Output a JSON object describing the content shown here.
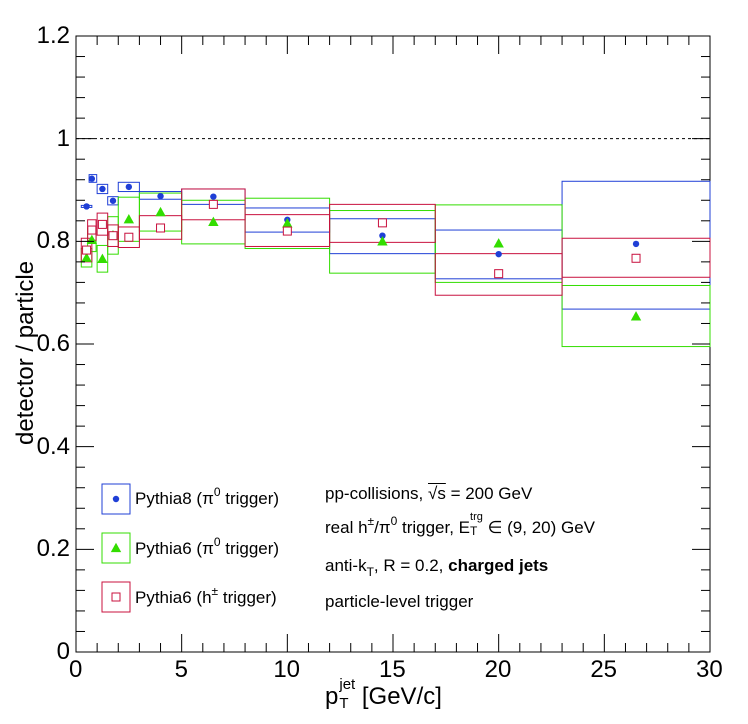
{
  "chart_data": {
    "type": "scatter",
    "xlabel": "p_T^jet [GeV/c]",
    "ylabel": "detector / particle",
    "xlim": [
      0,
      30
    ],
    "ylim": [
      0,
      1.2
    ],
    "x_ticks": [
      "0",
      "5",
      "10",
      "15",
      "20",
      "25",
      "30"
    ],
    "y_ticks": [
      "0",
      "0.2",
      "0.4",
      "0.6",
      "0.8",
      "1",
      "1.2"
    ],
    "reference_line": {
      "y": 1.0,
      "style": "dotted"
    },
    "grid": false,
    "legend_position": "bottom-left",
    "series": [
      {
        "name": "Pythia8 (π0 trigger)",
        "color": "#1f3fd6",
        "marker": "filled-circle",
        "points": [
          {
            "x": 0.5,
            "y": 0.868,
            "xlo": 0.25,
            "xhi": 0.75,
            "ylo": 0.866,
            "yhi": 0.87
          },
          {
            "x": 0.75,
            "y": 0.922,
            "xlo": 0.62,
            "xhi": 0.98,
            "ylo": 0.915,
            "yhi": 0.93
          },
          {
            "x": 1.25,
            "y": 0.902,
            "xlo": 1.0,
            "xhi": 1.5,
            "ylo": 0.893,
            "yhi": 0.911
          },
          {
            "x": 1.75,
            "y": 0.879,
            "xlo": 1.5,
            "xhi": 2.0,
            "ylo": 0.871,
            "yhi": 0.887
          },
          {
            "x": 2.5,
            "y": 0.906,
            "xlo": 2.0,
            "xhi": 3.0,
            "ylo": 0.897,
            "yhi": 0.915
          },
          {
            "x": 4.0,
            "y": 0.888,
            "xlo": 3.0,
            "xhi": 5.0,
            "ylo": 0.882,
            "yhi": 0.897
          },
          {
            "x": 6.5,
            "y": 0.887,
            "xlo": 5.0,
            "xhi": 8.0,
            "ylo": 0.872,
            "yhi": 0.902
          },
          {
            "x": 10.0,
            "y": 0.842,
            "xlo": 8.0,
            "xhi": 12.0,
            "ylo": 0.818,
            "yhi": 0.865
          },
          {
            "x": 14.5,
            "y": 0.811,
            "xlo": 12.0,
            "xhi": 17.0,
            "ylo": 0.776,
            "yhi": 0.844
          },
          {
            "x": 20.0,
            "y": 0.775,
            "xlo": 17.0,
            "xhi": 23.0,
            "ylo": 0.727,
            "yhi": 0.822
          },
          {
            "x": 26.5,
            "y": 0.795,
            "xlo": 23.0,
            "xhi": 30.0,
            "ylo": 0.668,
            "yhi": 0.917
          }
        ]
      },
      {
        "name": "Pythia6 (π0 trigger)",
        "color": "#33dd00",
        "marker": "filled-triangle",
        "points": [
          {
            "x": 0.5,
            "y": 0.768,
            "xlo": 0.25,
            "xhi": 0.75,
            "ylo": 0.75,
            "yhi": 0.786
          },
          {
            "x": 0.75,
            "y": 0.803,
            "xlo": 0.55,
            "xhi": 0.95,
            "ylo": 0.78,
            "yhi": 0.826
          },
          {
            "x": 1.25,
            "y": 0.766,
            "xlo": 1.0,
            "xhi": 1.5,
            "ylo": 0.74,
            "yhi": 0.792
          },
          {
            "x": 1.75,
            "y": 0.812,
            "xlo": 1.5,
            "xhi": 2.0,
            "ylo": 0.775,
            "yhi": 0.848
          },
          {
            "x": 2.5,
            "y": 0.843,
            "xlo": 2.0,
            "xhi": 3.0,
            "ylo": 0.8,
            "yhi": 0.886
          },
          {
            "x": 4.0,
            "y": 0.857,
            "xlo": 3.0,
            "xhi": 5.0,
            "ylo": 0.82,
            "yhi": 0.894
          },
          {
            "x": 6.5,
            "y": 0.838,
            "xlo": 5.0,
            "xhi": 8.0,
            "ylo": 0.795,
            "yhi": 0.88
          },
          {
            "x": 10.0,
            "y": 0.835,
            "xlo": 8.0,
            "xhi": 12.0,
            "ylo": 0.786,
            "yhi": 0.884
          },
          {
            "x": 14.5,
            "y": 0.8,
            "xlo": 12.0,
            "xhi": 17.0,
            "ylo": 0.738,
            "yhi": 0.86
          },
          {
            "x": 20.0,
            "y": 0.796,
            "xlo": 17.0,
            "xhi": 23.0,
            "ylo": 0.72,
            "yhi": 0.871
          },
          {
            "x": 26.5,
            "y": 0.654,
            "xlo": 23.0,
            "xhi": 30.0,
            "ylo": 0.595,
            "yhi": 0.714
          }
        ]
      },
      {
        "name": "Pythia6 (h± trigger)",
        "color": "#c8103e",
        "marker": "open-square",
        "points": [
          {
            "x": 0.5,
            "y": 0.783,
            "xlo": 0.25,
            "xhi": 0.75,
            "ylo": 0.76,
            "yhi": 0.806
          },
          {
            "x": 0.75,
            "y": 0.822,
            "xlo": 0.55,
            "xhi": 0.95,
            "ylo": 0.802,
            "yhi": 0.842
          },
          {
            "x": 1.25,
            "y": 0.833,
            "xlo": 1.0,
            "xhi": 1.5,
            "ylo": 0.812,
            "yhi": 0.855
          },
          {
            "x": 1.75,
            "y": 0.811,
            "xlo": 1.5,
            "xhi": 2.0,
            "ylo": 0.79,
            "yhi": 0.832
          },
          {
            "x": 2.5,
            "y": 0.808,
            "xlo": 2.0,
            "xhi": 3.0,
            "ylo": 0.788,
            "yhi": 0.828
          },
          {
            "x": 4.0,
            "y": 0.826,
            "xlo": 3.0,
            "xhi": 5.0,
            "ylo": 0.804,
            "yhi": 0.85
          },
          {
            "x": 6.5,
            "y": 0.872,
            "xlo": 5.0,
            "xhi": 8.0,
            "ylo": 0.842,
            "yhi": 0.902
          },
          {
            "x": 10.0,
            "y": 0.82,
            "xlo": 8.0,
            "xhi": 12.0,
            "ylo": 0.79,
            "yhi": 0.852
          },
          {
            "x": 14.5,
            "y": 0.836,
            "xlo": 12.0,
            "xhi": 17.0,
            "ylo": 0.798,
            "yhi": 0.872
          },
          {
            "x": 20.0,
            "y": 0.737,
            "xlo": 17.0,
            "xhi": 23.0,
            "ylo": 0.695,
            "yhi": 0.776
          },
          {
            "x": 26.5,
            "y": 0.767,
            "xlo": 23.0,
            "xhi": 30.0,
            "ylo": 0.73,
            "yhi": 0.806
          }
        ]
      }
    ]
  },
  "legend": {
    "items": [
      {
        "prefix": "Pythia8 (π",
        "sup": "0",
        "suffix": " trigger)"
      },
      {
        "prefix": "Pythia6 (π",
        "sup": "0",
        "suffix": " trigger)"
      },
      {
        "prefix": "Pythia6 (h",
        "sup": "±",
        "suffix": " trigger)"
      }
    ]
  },
  "annotations": {
    "line1_prefix": "pp-collisions, ",
    "line1_sqrt": "√s",
    "line1_suffix": " = 200 GeV",
    "line2_prefix": "real h",
    "line2_sup1": "±",
    "line2_mid": "/π",
    "line2_sup2": "0",
    "line2_mid2": " trigger, E",
    "line2_sub": "T",
    "line2_sup3": "trg",
    "line2_suffix": " ∈ (9, 20) GeV",
    "line3_prefix": "anti-k",
    "line3_sub": "T",
    "line3_mid": ", R = 0.2, ",
    "line3_bold": "charged jets",
    "line4": "particle-level trigger"
  },
  "axis_titles": {
    "x_main": "p",
    "x_sub": "T",
    "x_sup": "jet",
    "x_unit": " [GeV/c]",
    "y": "detector / particle"
  }
}
